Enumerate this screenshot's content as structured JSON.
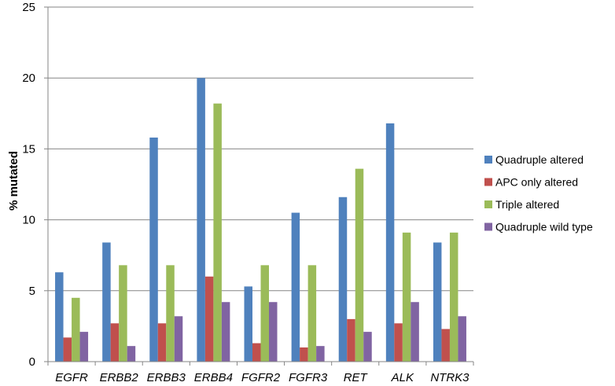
{
  "chart_data": {
    "type": "bar",
    "title": "",
    "xlabel": "",
    "ylabel": "% mutated",
    "ylim": [
      0,
      25
    ],
    "yticks": [
      "0",
      "5",
      "10",
      "15",
      "20",
      "25"
    ],
    "grid": true,
    "legend_position": "right",
    "categories": [
      "EGFR",
      "ERBB2",
      "ERBB3",
      "ERBB4",
      "FGFR2",
      "FGFR3",
      "RET",
      "ALK",
      "NTRK3"
    ],
    "series": [
      {
        "name": "Quadruple altered",
        "color": "#4f81bd",
        "values": [
          6.3,
          8.4,
          15.8,
          20.0,
          5.3,
          10.5,
          11.6,
          16.8,
          8.4
        ]
      },
      {
        "name": "APC only altered",
        "color": "#c0504d",
        "values": [
          1.7,
          2.7,
          2.7,
          6.0,
          1.3,
          1.0,
          3.0,
          2.7,
          2.3
        ]
      },
      {
        "name": "Triple altered",
        "color": "#9bbb59",
        "values": [
          4.5,
          6.8,
          6.8,
          18.2,
          6.8,
          6.8,
          13.6,
          9.1,
          9.1
        ]
      },
      {
        "name": "Quadruple wild type",
        "color": "#8064a2",
        "values": [
          2.1,
          1.1,
          3.2,
          4.2,
          4.2,
          1.1,
          2.1,
          4.2,
          3.2
        ]
      }
    ]
  }
}
